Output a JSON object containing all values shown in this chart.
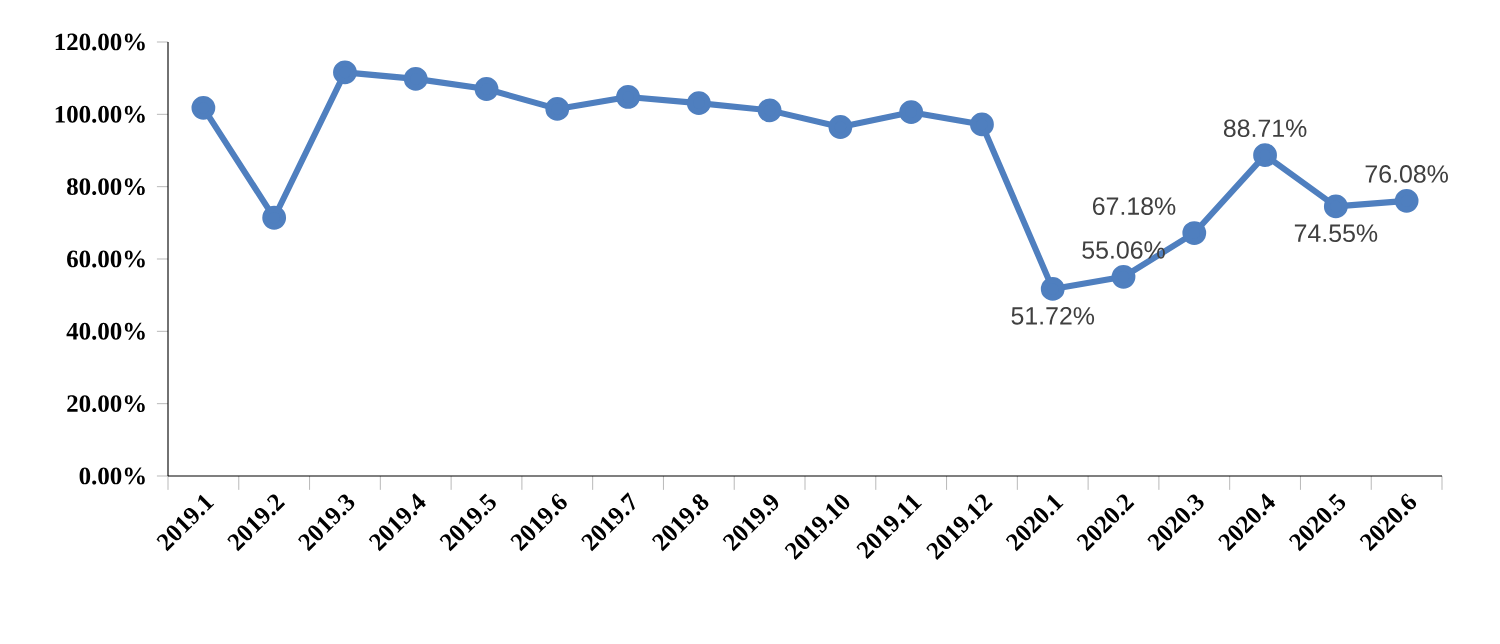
{
  "chart_data": {
    "type": "line",
    "categories": [
      "2019.1",
      "2019.2",
      "2019.3",
      "2019.4",
      "2019.5",
      "2019.6",
      "2019.7",
      "2019.8",
      "2019.9",
      "2019.10",
      "2019.11",
      "2019.12",
      "2020.1",
      "2020.2",
      "2020.3",
      "2020.4",
      "2020.5",
      "2020.6"
    ],
    "series": [
      {
        "color": "#4f7fbf",
        "values": [
          101.8,
          71.4,
          111.6,
          109.8,
          107.0,
          101.5,
          104.8,
          103.1,
          101.1,
          96.5,
          100.6,
          97.2,
          51.72,
          55.06,
          67.18,
          88.71,
          74.55,
          76.08
        ],
        "value_labels": [
          null,
          null,
          null,
          null,
          null,
          null,
          null,
          null,
          null,
          null,
          null,
          null,
          "51.72%",
          "55.06%",
          "67.18%",
          "88.71%",
          "74.55%",
          "76.08%"
        ]
      }
    ],
    "ylim": [
      0,
      120
    ],
    "yticks": [
      {
        "value": 0,
        "label": "0.00%"
      },
      {
        "value": 20,
        "label": "20.00%"
      },
      {
        "value": 40,
        "label": "40.00%"
      },
      {
        "value": 60,
        "label": "60.00%"
      },
      {
        "value": 80,
        "label": "80.00%"
      },
      {
        "value": 100,
        "label": "100.00%"
      },
      {
        "value": 120,
        "label": "120.00%"
      }
    ],
    "marker": "circle",
    "grid": false
  }
}
